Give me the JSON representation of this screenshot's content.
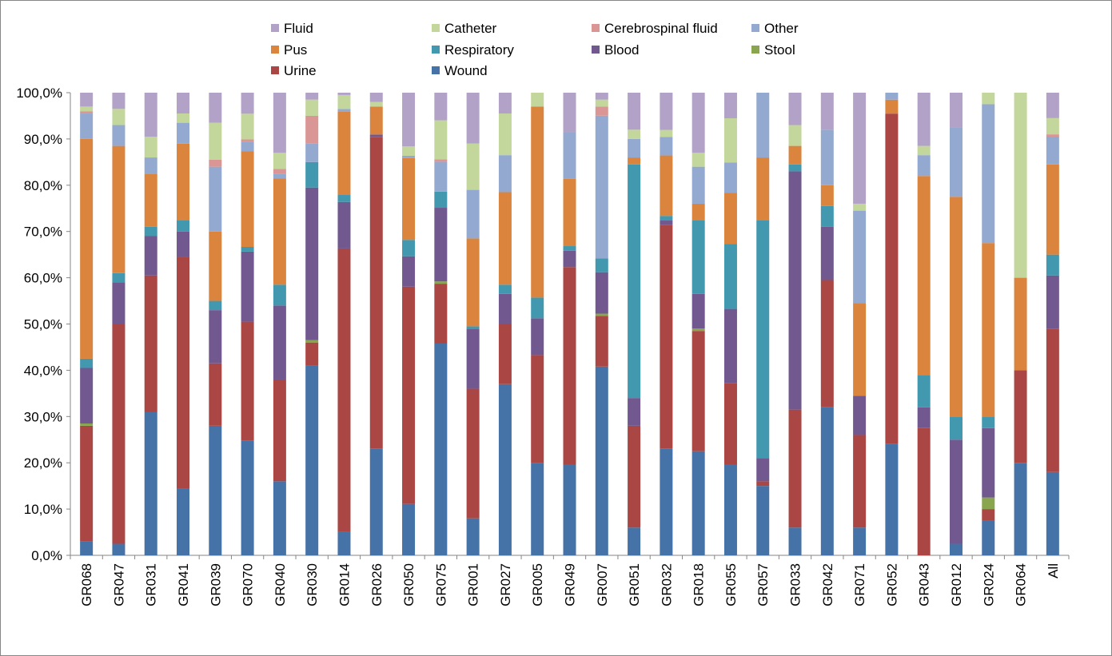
{
  "chart_data": {
    "type": "bar",
    "stacked": "percent",
    "title": "",
    "xlabel": "",
    "ylabel": "",
    "ylim": [
      0,
      100
    ],
    "y_ticks": [
      "0,0%",
      "10,0%",
      "20,0%",
      "30,0%",
      "40,0%",
      "50,0%",
      "60,0%",
      "70,0%",
      "80,0%",
      "90,0%",
      "100,0%"
    ],
    "grid": false,
    "legend_position": "top",
    "categories": [
      "GR068",
      "GR047",
      "GR031",
      "GR041",
      "GR039",
      "GR070",
      "GR040",
      "GR030",
      "GR014",
      "GR026",
      "GR050",
      "GR075",
      "GR001",
      "GR027",
      "GR005",
      "GR049",
      "GR007",
      "GR051",
      "GR032",
      "GR018",
      "GR055",
      "GR057",
      "GR033",
      "GR042",
      "GR071",
      "GR052",
      "GR043",
      "GR012",
      "GR024",
      "GR064",
      "All"
    ],
    "series": [
      {
        "name": "Wound",
        "color": "#4572A7",
        "values": [
          3,
          2.5,
          31,
          14.5,
          28,
          24.5,
          16,
          41,
          5,
          23,
          11,
          46,
          8,
          37,
          20,
          19.5,
          41,
          6,
          23,
          22.5,
          19.5,
          15,
          6,
          32,
          6,
          24,
          0,
          2.5,
          7.5,
          20,
          18
        ]
      },
      {
        "name": "Urine",
        "color": "#AA4643",
        "values": [
          25,
          47.5,
          29.5,
          50,
          13.5,
          25.5,
          22,
          5,
          61,
          67,
          46.5,
          13,
          28,
          13,
          23.5,
          42.5,
          11,
          22,
          48,
          26,
          17.5,
          1,
          25.5,
          27.5,
          20,
          71,
          27.5,
          0,
          2.5,
          20,
          31
        ]
      },
      {
        "name": "Stool",
        "color": "#89A54E",
        "values": [
          0.5,
          0,
          0,
          0,
          0,
          0,
          0,
          0.5,
          0,
          0,
          0,
          0.5,
          0,
          0,
          0,
          0,
          0.5,
          0,
          0,
          0.5,
          0,
          0,
          0,
          0,
          0,
          0,
          0,
          0,
          2.5,
          0,
          0
        ]
      },
      {
        "name": "Blood",
        "color": "#71588F",
        "values": [
          12,
          9,
          8.5,
          5.5,
          11.5,
          15,
          16,
          33,
          10,
          0.5,
          6.5,
          16,
          13,
          6.5,
          8,
          3.5,
          9,
          6,
          1,
          7.5,
          16,
          5,
          51.5,
          11.5,
          8.5,
          0,
          4.5,
          22.5,
          15,
          0,
          11.5
        ]
      },
      {
        "name": "Respiratory",
        "color": "#4198AF",
        "values": [
          2,
          2,
          2,
          2.5,
          2,
          1,
          4.5,
          5.5,
          1.5,
          0,
          3.5,
          3.5,
          0.5,
          2,
          4.5,
          1,
          3,
          50.5,
          1,
          16,
          14,
          51.5,
          1.5,
          4.5,
          0,
          0,
          7,
          5,
          2.5,
          0,
          4.5
        ]
      },
      {
        "name": "Pus",
        "color": "#DB843D",
        "values": [
          47.5,
          27.5,
          11.5,
          16.5,
          15,
          20.5,
          23,
          0,
          18,
          6,
          17.5,
          0,
          19,
          20,
          41.5,
          14.5,
          0,
          1.5,
          13,
          3.5,
          11,
          13.5,
          4,
          4.5,
          20,
          3,
          43,
          47.5,
          37.5,
          20,
          19.5
        ]
      },
      {
        "name": "Other",
        "color": "#93A9CF",
        "values": [
          5.5,
          4.5,
          3.5,
          4.5,
          14,
          2,
          1,
          4,
          0.5,
          0,
          0.5,
          6.5,
          10.5,
          8,
          0,
          10,
          31,
          4,
          4,
          8,
          6.5,
          14,
          0,
          12,
          20,
          1.5,
          4.5,
          15,
          30,
          0,
          6
        ]
      },
      {
        "name": "Cerebrospinal fluid",
        "color": "#D99694",
        "values": [
          0.5,
          0,
          0,
          0,
          1.5,
          0.5,
          1,
          6,
          0,
          0,
          0,
          0.5,
          0,
          0,
          0,
          0,
          2,
          0,
          0,
          0,
          0,
          0,
          0,
          0,
          0,
          0,
          0,
          0,
          0,
          0,
          0.5
        ]
      },
      {
        "name": "Catheter",
        "color": "#C3D69B",
        "values": [
          1,
          3.5,
          4.5,
          2,
          8,
          5.5,
          3.5,
          3.5,
          3,
          1,
          2,
          8.5,
          10,
          9,
          3,
          0,
          1.5,
          2,
          1.5,
          3,
          9.5,
          0,
          4.5,
          0,
          1.5,
          0,
          2,
          0,
          2.5,
          40,
          3.5
        ]
      },
      {
        "name": "Fluid",
        "color": "#B3A2C7",
        "values": [
          3,
          3.5,
          9.5,
          4.5,
          6.5,
          4.5,
          13,
          1.5,
          0.5,
          2,
          11.5,
          6,
          11,
          4.5,
          0,
          8.5,
          1.5,
          8,
          8,
          13,
          5.5,
          0,
          7,
          8,
          24,
          0,
          11.5,
          7.5,
          0,
          0,
          5.5
        ]
      }
    ]
  },
  "legend": [
    {
      "label": "Fluid",
      "color": "#B3A2C7"
    },
    {
      "label": "Catheter",
      "color": "#C3D69B"
    },
    {
      "label": "Cerebrospinal fluid",
      "color": "#D99694"
    },
    {
      "label": "Other",
      "color": "#93A9CF"
    },
    {
      "label": "Pus",
      "color": "#DB843D"
    },
    {
      "label": "Respiratory",
      "color": "#4198AF"
    },
    {
      "label": "Blood",
      "color": "#71588F"
    },
    {
      "label": "Stool",
      "color": "#89A54E"
    },
    {
      "label": "Urine",
      "color": "#AA4643"
    },
    {
      "label": "Wound",
      "color": "#4572A7"
    }
  ]
}
